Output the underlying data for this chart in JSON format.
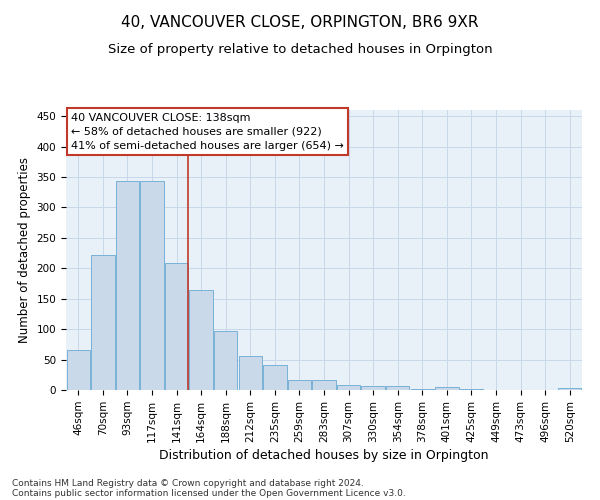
{
  "title": "40, VANCOUVER CLOSE, ORPINGTON, BR6 9XR",
  "subtitle": "Size of property relative to detached houses in Orpington",
  "xlabel": "Distribution of detached houses by size in Orpington",
  "ylabel": "Number of detached properties",
  "bar_labels": [
    "46sqm",
    "70sqm",
    "93sqm",
    "117sqm",
    "141sqm",
    "164sqm",
    "188sqm",
    "212sqm",
    "235sqm",
    "259sqm",
    "283sqm",
    "307sqm",
    "330sqm",
    "354sqm",
    "378sqm",
    "401sqm",
    "425sqm",
    "449sqm",
    "473sqm",
    "496sqm",
    "520sqm"
  ],
  "bar_heights": [
    65,
    222,
    344,
    344,
    208,
    165,
    97,
    56,
    41,
    17,
    17,
    8,
    6,
    6,
    2,
    5,
    1,
    0,
    0,
    0,
    4
  ],
  "bar_color": "#c9d9ea",
  "bar_edge_color": "#6aaad4",
  "background_color": "#e8f0f8",
  "grid_color": "#c8d8e8",
  "vline_color": "#c0392b",
  "vline_bin_index": 4,
  "annotation_text": "40 VANCOUVER CLOSE: 138sqm\n← 58% of detached houses are smaller (922)\n41% of semi-detached houses are larger (654) →",
  "annotation_box_color": "#c0392b",
  "ylim": [
    0,
    460
  ],
  "yticks": [
    0,
    50,
    100,
    150,
    200,
    250,
    300,
    350,
    400,
    450
  ],
  "footnote_line1": "Contains HM Land Registry data © Crown copyright and database right 2024.",
  "footnote_line2": "Contains public sector information licensed under the Open Government Licence v3.0.",
  "title_fontsize": 11,
  "subtitle_fontsize": 9.5,
  "tick_fontsize": 7.5,
  "ylabel_fontsize": 8.5,
  "xlabel_fontsize": 9
}
